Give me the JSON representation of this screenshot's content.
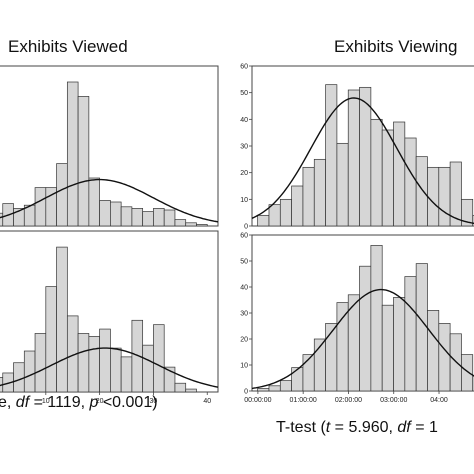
{
  "figure": {
    "left_title": "Exhibits Viewed",
    "right_title": "Exhibits Viewing",
    "left_caption": {
      "df_label": "df",
      "df_text": " = 1119,  ",
      "p_label": "p",
      "p_text": " <0.001)",
      "prefix": "e, "
    },
    "right_caption": {
      "test_text": "T-test (",
      "t_label": "t",
      "t_text": " = 5.960,  ",
      "df_label": "df",
      "df_text": " = 1"
    }
  },
  "chart_data": [
    {
      "type": "bar",
      "panel": "left-top",
      "title": "Exhibits Viewed",
      "xlim": [
        0,
        42
      ],
      "bin_width": 2,
      "x": [
        1,
        3,
        5,
        7,
        9,
        11,
        13,
        15,
        17,
        19,
        21,
        23,
        25,
        27,
        29,
        31,
        33,
        35,
        37,
        39,
        41
      ],
      "values": [
        8,
        14,
        11,
        13,
        24,
        24,
        39,
        90,
        81,
        30,
        16,
        15,
        12,
        11,
        9,
        11,
        10,
        4,
        2,
        1,
        0
      ],
      "curve": {
        "mean": 20,
        "sd": 10,
        "peak": 29
      },
      "ylim": [
        0,
        100
      ],
      "grid": false
    },
    {
      "type": "bar",
      "panel": "left-bottom",
      "xlim": [
        0,
        42
      ],
      "bin_width": 2,
      "x": [
        1,
        3,
        5,
        7,
        9,
        11,
        13,
        15,
        17,
        19,
        21,
        23,
        25,
        27,
        29,
        31,
        33,
        35,
        37,
        39,
        41
      ],
      "values": [
        10,
        13,
        20,
        28,
        40,
        72,
        99,
        52,
        40,
        38,
        43,
        30,
        24,
        49,
        32,
        46,
        17,
        6,
        2,
        0,
        0
      ],
      "curve": {
        "mean": 21,
        "sd": 10,
        "peak": 30
      },
      "ylim": [
        0,
        110
      ],
      "xticks": [
        10,
        20,
        30,
        40
      ],
      "grid": false
    },
    {
      "type": "bar",
      "panel": "right-top",
      "xlim": [
        0,
        5.3
      ],
      "x": [
        0.25,
        0.5,
        0.75,
        1,
        1.25,
        1.5,
        1.75,
        2,
        2.25,
        2.5,
        2.75,
        3,
        3.25,
        3.5,
        3.75,
        4,
        4.25,
        4.5,
        4.75,
        5
      ],
      "values": [
        4,
        8,
        10,
        15,
        22,
        25,
        53,
        31,
        51,
        52,
        40,
        36,
        39,
        33,
        26,
        22,
        22,
        24,
        10,
        4
      ],
      "curve": {
        "mean": 2.25,
        "sd": 0.95,
        "peak": 48
      },
      "ylim": [
        0,
        60
      ],
      "yticks": [
        0,
        10,
        20,
        30,
        40,
        50,
        60
      ],
      "grid": false
    },
    {
      "type": "bar",
      "panel": "right-bottom",
      "xlim": [
        0,
        5.3
      ],
      "x": [
        0.25,
        0.5,
        0.75,
        1,
        1.25,
        1.5,
        1.75,
        2,
        2.25,
        2.5,
        2.75,
        3,
        3.25,
        3.5,
        3.75,
        4,
        4.25,
        4.5,
        4.75,
        5
      ],
      "values": [
        1,
        2,
        4,
        9,
        14,
        20,
        26,
        34,
        37,
        48,
        56,
        33,
        36,
        44,
        49,
        31,
        26,
        22,
        14,
        6
      ],
      "curve": {
        "mean": 2.85,
        "sd": 1.05,
        "peak": 39
      },
      "ylim": [
        0,
        60
      ],
      "yticks": [
        0,
        10,
        20,
        30,
        40,
        50,
        60
      ],
      "xticks": [
        "00:00:00",
        "01:00:00",
        "02:00:00",
        "03:00:00",
        "04:00"
      ],
      "xtick_values": [
        0.13,
        1.13,
        2.13,
        3.13,
        4.13
      ],
      "grid": false
    }
  ]
}
